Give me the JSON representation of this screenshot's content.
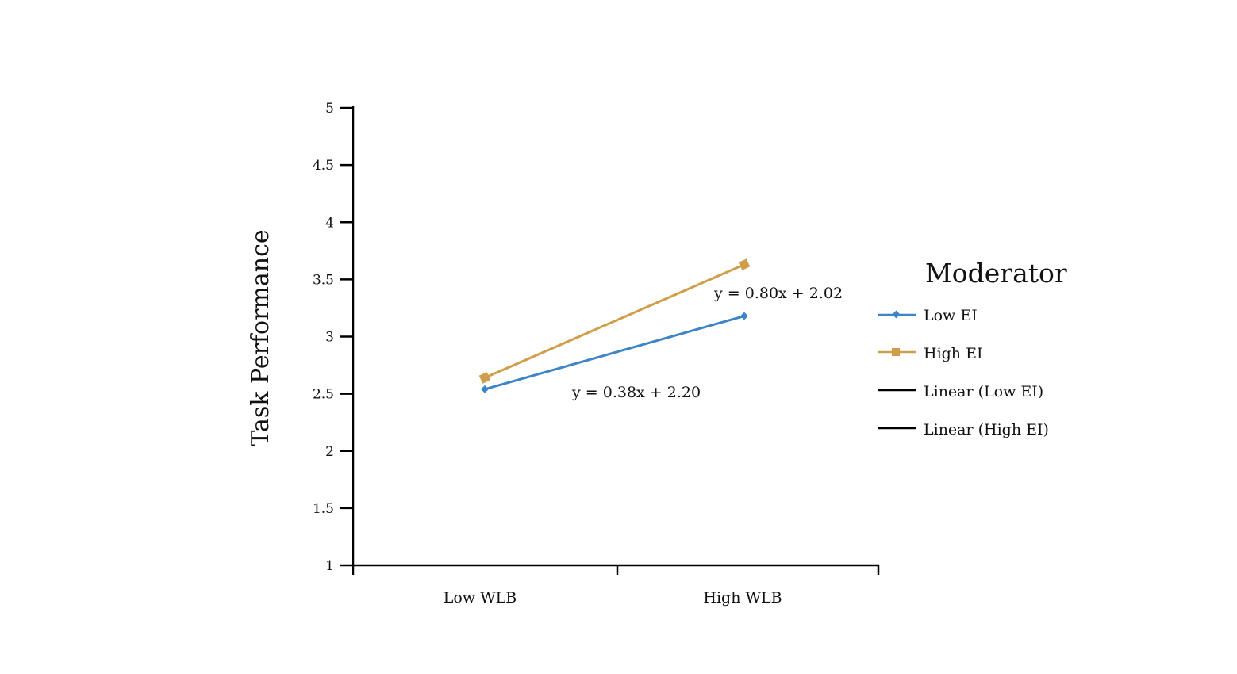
{
  "chart_data": {
    "type": "line",
    "title": "",
    "xlabel": "",
    "ylabel": "Task Performance",
    "categories": [
      "Low WLB",
      "High WLB"
    ],
    "ylim": [
      1,
      5
    ],
    "yticks": [
      "1",
      "1.5",
      "2",
      "2.5",
      "3",
      "3.5",
      "4",
      "4.5",
      "5"
    ],
    "grid": false,
    "legend": {
      "title": "Moderator",
      "placement": "right",
      "entries": [
        "Low EI",
        "High EI",
        "Linear (Low EI)",
        "Linear (High EI)"
      ]
    },
    "series": [
      {
        "name": "Low EI",
        "values": [
          2.54,
          3.18
        ],
        "color": "#3d85c6",
        "marker": "diamond"
      },
      {
        "name": "High EI",
        "values": [
          2.64,
          3.63
        ],
        "color": "#d09d4a",
        "marker": "square"
      }
    ],
    "annotations": [
      "y = 0.80x + 2.02",
      "y = 0.38x + 2.20"
    ]
  }
}
